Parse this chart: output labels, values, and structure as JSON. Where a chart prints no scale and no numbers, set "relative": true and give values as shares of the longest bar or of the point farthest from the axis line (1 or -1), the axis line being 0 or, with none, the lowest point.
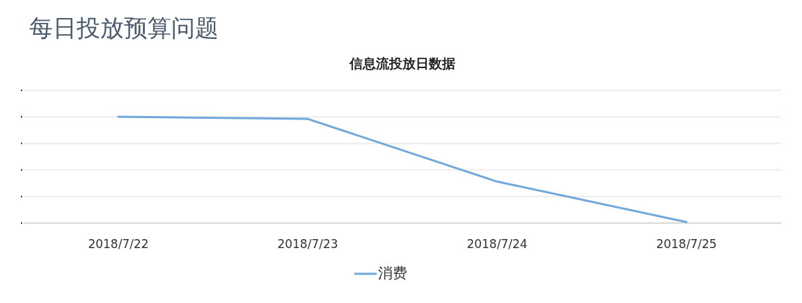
{
  "chart_data": {
    "type": "line",
    "title": "每日投放预算问题",
    "subtitle": "信息流投放日数据",
    "categories": [
      "2018/7/22",
      "2018/7/23",
      "2018/7/24",
      "2018/7/25"
    ],
    "series": [
      {
        "name": "消费",
        "color": "#6fa8dc",
        "values": [
          1,
          0.98,
          0.39,
          0.01
        ]
      }
    ],
    "relative": true,
    "grid": "y",
    "legend": "bottom",
    "marker": "none",
    "line_style": "solid"
  }
}
